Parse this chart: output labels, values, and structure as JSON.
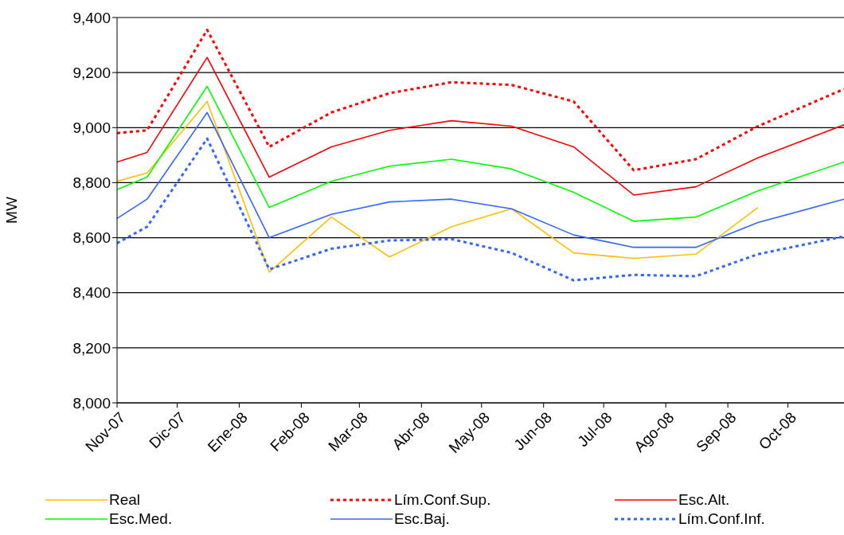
{
  "chart_data": {
    "type": "line",
    "ylabel": "MW",
    "x": [
      "2007-11-01",
      "2007-11-16",
      "2007-12-16",
      "2008-01-16",
      "2008-02-16",
      "2008-03-16",
      "2008-04-16",
      "2008-05-16",
      "2008-06-16",
      "2008-07-16",
      "2008-08-16",
      "2008-09-16",
      "2008-10-29"
    ],
    "xlim": [
      "2007-11-01",
      "2008-10-29"
    ],
    "xticks": [
      {
        "value": "2007-11-01",
        "label": "Nov-07"
      },
      {
        "value": "2007-12-01",
        "label": "Dic-07"
      },
      {
        "value": "2008-01-01",
        "label": "Ene-08"
      },
      {
        "value": "2008-02-01",
        "label": "Feb-08"
      },
      {
        "value": "2008-03-01",
        "label": "Mar-08"
      },
      {
        "value": "2008-04-01",
        "label": "Abr-08"
      },
      {
        "value": "2008-05-01",
        "label": "May-08"
      },
      {
        "value": "2008-06-01",
        "label": "Jun-08"
      },
      {
        "value": "2008-07-01",
        "label": "Jul-08"
      },
      {
        "value": "2008-08-01",
        "label": "Ago-08"
      },
      {
        "value": "2008-09-01",
        "label": "Sep-08"
      },
      {
        "value": "2008-10-01",
        "label": "Oct-08"
      }
    ],
    "ylim": [
      8000,
      9400
    ],
    "yticks": [
      {
        "value": 8000,
        "label": "8,000"
      },
      {
        "value": 8200,
        "label": "8,200"
      },
      {
        "value": 8400,
        "label": "8,400"
      },
      {
        "value": 8600,
        "label": "8,600"
      },
      {
        "value": 8800,
        "label": "8,800"
      },
      {
        "value": 9000,
        "label": "9,000"
      },
      {
        "value": 9200,
        "label": "9,200"
      },
      {
        "value": 9400,
        "label": "9,400"
      }
    ],
    "grid": "y",
    "legend": "bottom",
    "marker": "none",
    "series": [
      {
        "name": "Real",
        "color": "#ffc000",
        "line_style": "solid",
        "values": [
          8805,
          8835,
          9095,
          8475,
          8675,
          8530,
          8640,
          8705,
          8545,
          8525,
          8540,
          8710,
          null
        ]
      },
      {
        "name": "Lím.Conf.Sup.",
        "color": "#ff0000",
        "line_style": "dotted",
        "values": [
          8980,
          8990,
          9355,
          8930,
          9055,
          9125,
          9165,
          9155,
          9095,
          8845,
          8885,
          9005,
          9140
        ]
      },
      {
        "name": "Esc.Alt.",
        "color": "#ff0000",
        "line_style": "solid",
        "values": [
          8875,
          8910,
          9255,
          8820,
          8930,
          8990,
          9025,
          9005,
          8930,
          8755,
          8785,
          8890,
          9010
        ]
      },
      {
        "name": "Esc.Med.",
        "color": "#00ff00",
        "line_style": "solid",
        "values": [
          8775,
          8820,
          9150,
          8710,
          8805,
          8860,
          8885,
          8850,
          8765,
          8660,
          8675,
          8770,
          8875
        ]
      },
      {
        "name": "Esc.Baj.",
        "color": "#3366ff",
        "line_style": "solid",
        "values": [
          8670,
          8740,
          9055,
          8600,
          8685,
          8730,
          8740,
          8705,
          8610,
          8565,
          8565,
          8655,
          8740
        ]
      },
      {
        "name": "Lím.Conf.Inf.",
        "color": "#3366ff",
        "line_style": "dotted",
        "values": [
          8580,
          8640,
          8960,
          8485,
          8560,
          8590,
          8595,
          8545,
          8445,
          8465,
          8460,
          8540,
          8605
        ]
      }
    ]
  }
}
